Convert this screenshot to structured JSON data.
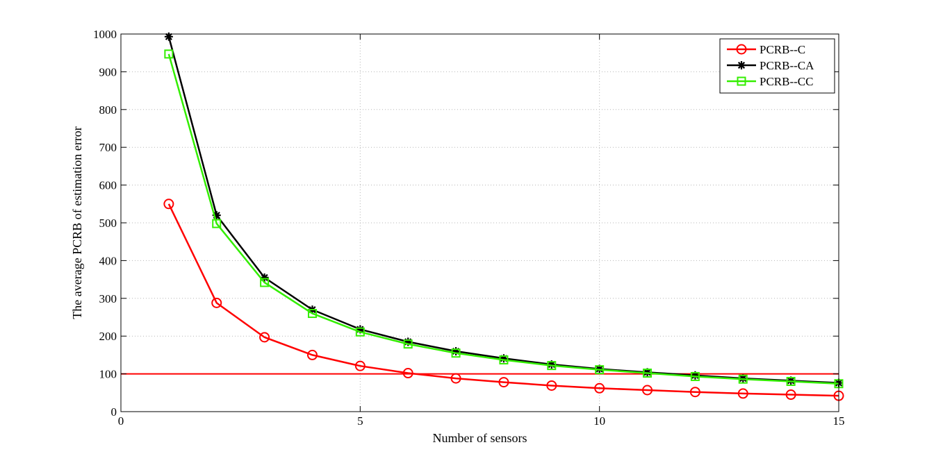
{
  "chart_data": {
    "type": "line",
    "title": "",
    "xlabel": "Number of sensors",
    "ylabel": "The average PCRB of estimation error",
    "xlim": [
      0,
      15
    ],
    "ylim": [
      0,
      1000
    ],
    "xticks": [
      0,
      5,
      10,
      15
    ],
    "yticks": [
      0,
      100,
      200,
      300,
      400,
      500,
      600,
      700,
      800,
      900,
      1000
    ],
    "grid": true,
    "legend_position": "top-right",
    "x": [
      1,
      2,
      3,
      4,
      5,
      6,
      7,
      8,
      9,
      10,
      11,
      12,
      13,
      14,
      15
    ],
    "series": [
      {
        "name": "PCRB--C",
        "color": "#ff0000",
        "marker": "circle",
        "values": [
          550,
          288,
          197,
          150,
          121,
          102,
          88,
          78,
          69,
          62,
          57,
          52,
          48,
          45,
          42
        ]
      },
      {
        "name": "PCRB--CA",
        "color": "#000000",
        "marker": "asterisk",
        "values": [
          993,
          520,
          355,
          270,
          218,
          185,
          160,
          141,
          125,
          113,
          104,
          96,
          88,
          82,
          76
        ]
      },
      {
        "name": "PCRB--CC",
        "color": "#33ee00",
        "marker": "square",
        "values": [
          947,
          498,
          342,
          260,
          211,
          179,
          155,
          137,
          122,
          111,
          102,
          93,
          86,
          80,
          74
        ]
      }
    ],
    "reference_lines": [
      {
        "y": 100,
        "color": "#ff0000"
      }
    ]
  }
}
